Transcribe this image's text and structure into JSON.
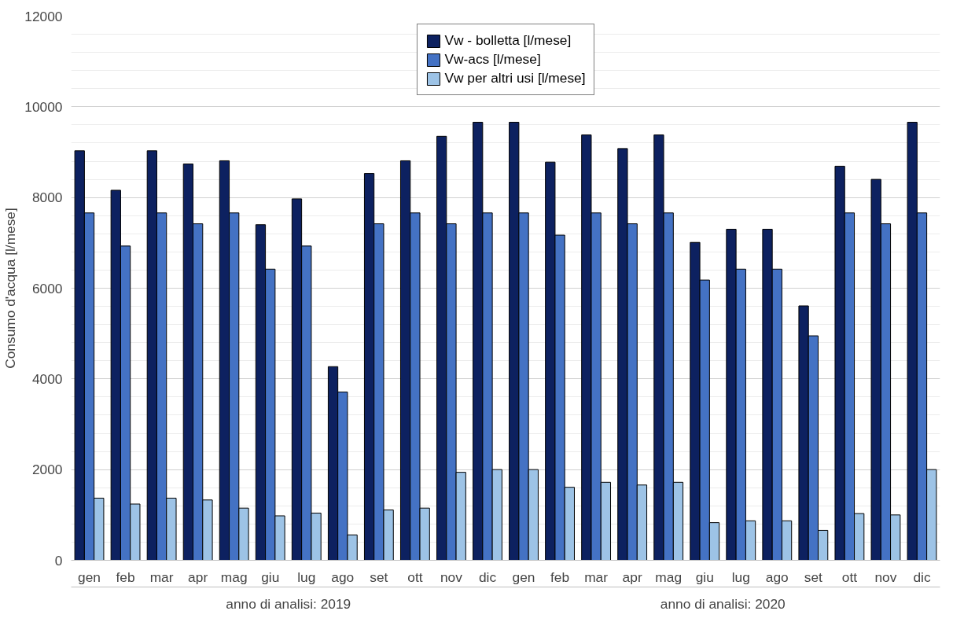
{
  "chart_data": {
    "type": "bar",
    "ylabel": "Consumo d'acqua [l/mese]",
    "categories": [
      "gen",
      "feb",
      "mar",
      "apr",
      "mag",
      "giu",
      "lug",
      "ago",
      "set",
      "ott",
      "nov",
      "dic",
      "gen",
      "feb",
      "mar",
      "apr",
      "mag",
      "giu",
      "lug",
      "ago",
      "set",
      "ott",
      "nov",
      "dic"
    ],
    "series": [
      {
        "name": "Vw - bolletta [l/mese]",
        "color": "#0d2160",
        "values": [
          9030,
          8160,
          9030,
          8740,
          8810,
          7400,
          7970,
          4270,
          8530,
          8810,
          9350,
          9660,
          9660,
          8780,
          9380,
          9080,
          9380,
          7010,
          7300,
          7300,
          5610,
          8690,
          8400,
          9660
        ]
      },
      {
        "name": "Vw-acs [l/mese]",
        "color": "#4472c4",
        "values": [
          7660,
          6930,
          7660,
          7420,
          7660,
          6420,
          6930,
          3710,
          7420,
          7660,
          7420,
          7660,
          7660,
          7170,
          7660,
          7420,
          7660,
          6180,
          6420,
          6420,
          4950,
          7660,
          7420,
          7660
        ]
      },
      {
        "name": "Vw per altri usi [l/mese]",
        "color": "#9dc3e6",
        "values": [
          1370,
          1240,
          1370,
          1330,
          1150,
          980,
          1040,
          560,
          1110,
          1150,
          1940,
          2000,
          2000,
          1610,
          1720,
          1660,
          1720,
          830,
          870,
          870,
          660,
          1030,
          1000,
          2000
        ]
      }
    ],
    "annotations": [
      "anno di analisi: 2019",
      "anno di analisi: 2020"
    ],
    "ylim": [
      0,
      12000
    ],
    "yticks": [
      0,
      2000,
      4000,
      6000,
      8000,
      10000,
      12000
    ],
    "grid": "y",
    "legend": "top"
  }
}
